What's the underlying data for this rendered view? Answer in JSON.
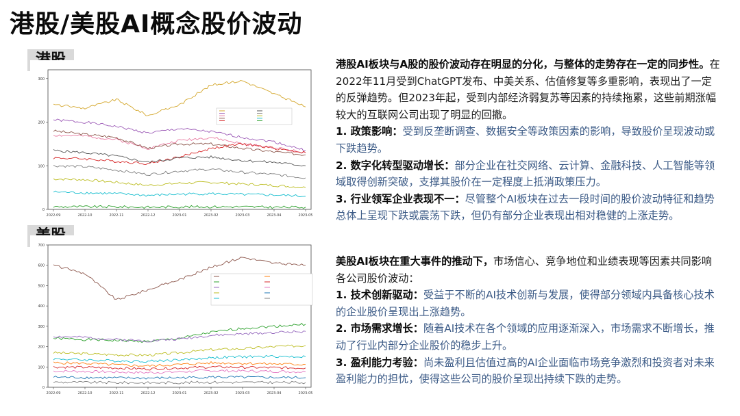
{
  "title": "港股/美股AI概念股价波动",
  "hk": {
    "label": "港股",
    "lead": "港股AI板块与A股的股价波动存在明显的分化，与整体的走势存在一定的同步性。",
    "intro": "在2022年11月受到ChatGPT发布、中美关系、估值修复等多重影响，表现出了一定的反弹趋势。但2023年起，受到内部经济弱复苏等因素的持续拖累，这些前期涨幅较大的互联网公司出现了明显的回撤。",
    "points": [
      {
        "head": "1. 政策影响：",
        "body": "受到反垄断调查、数据安全等政策因素的影响，导致股价呈现波动或下跌趋势。"
      },
      {
        "head": "2. 数字化转型驱动增长：",
        "body": "部分企业在社交网络、云计算、金融科技、人工智能等领域取得创新突破，支撑其股价在一定程度上抵消政策压力。"
      },
      {
        "head": "3. 行业领军企业表现不一：",
        "body": "尽管整个AI板块在过去一段时间的股价波动特征和趋势总体上呈现下跌或震荡下跌，但仍有部分企业表现出相对稳健的上涨走势。"
      }
    ]
  },
  "us": {
    "label": "美股",
    "lead": "美股AI板块在重大事件的推动下，",
    "intro": "市场信心、竞争地位和业绩表现等因素共同影响各公司股价波动：",
    "points": [
      {
        "head": "1. 技术创新驱动：",
        "body": "受益于不断的AI技术创新与发展，使得部分领域内具备核心技术的企业股价呈现出上涨趋势。"
      },
      {
        "head": "2. 市场需求增长：",
        "body": "随着AI技术在各个领域的应用逐渐深入，市场需求不断增长，推动了行业内部分企业股价的稳步上升。"
      },
      {
        "head": "3. 盈利能力考验：",
        "body": "尚未盈利且估值过高的AI企业面临市场竞争激烈和投资者对未来盈利能力的担忧，使得这些公司的股价呈现出持续下跌的走势。"
      }
    ]
  },
  "chart_data": [
    {
      "type": "line",
      "x": [
        "2022-09",
        "2022-10",
        "2022-11",
        "2022-12",
        "2023-01",
        "2023-02",
        "2023-03",
        "2023-04",
        "2023-05"
      ],
      "ylim": [
        0,
        320
      ],
      "yticks": [
        "0",
        "100",
        "200",
        "300"
      ],
      "grid": false,
      "legend_position": "center",
      "series": [
        {
          "color": "#d4a72c",
          "values": [
            240,
            232,
            252,
            215,
            240,
            285,
            295,
            265,
            235
          ]
        },
        {
          "color": "#9b59b6",
          "values": [
            205,
            200,
            190,
            175,
            185,
            178,
            165,
            155,
            135
          ]
        },
        {
          "color": "#e87aa0",
          "values": [
            170,
            168,
            160,
            140,
            158,
            165,
            150,
            142,
            130
          ]
        },
        {
          "color": "#8c564b",
          "values": [
            180,
            172,
            165,
            140,
            150,
            150,
            140,
            132,
            125
          ]
        },
        {
          "color": "#d62728",
          "values": [
            118,
            116,
            110,
            105,
            120,
            140,
            150,
            140,
            130
          ]
        },
        {
          "color": "#555555",
          "values": [
            135,
            130,
            122,
            108,
            118,
            120,
            112,
            108,
            100
          ]
        },
        {
          "color": "#7f7f7f",
          "values": [
            100,
            98,
            90,
            80,
            88,
            92,
            85,
            80,
            72
          ]
        },
        {
          "color": "#bcbd22",
          "values": [
            70,
            68,
            62,
            55,
            60,
            62,
            58,
            55,
            50
          ]
        },
        {
          "color": "#17becf",
          "values": [
            40,
            38,
            36,
            32,
            35,
            36,
            34,
            33,
            30
          ]
        },
        {
          "color": "#2ca02c",
          "values": [
            6,
            6,
            6,
            5,
            6,
            6,
            6,
            5,
            5
          ]
        }
      ]
    },
    {
      "type": "line",
      "x": [
        "2022-09",
        "2022-10",
        "2022-11",
        "2022-12",
        "2023-01",
        "2023-02",
        "2023-03",
        "2023-04",
        "2023-05"
      ],
      "ylim": [
        0,
        700
      ],
      "yticks": [
        "0",
        "100",
        "200",
        "300",
        "400",
        "500",
        "600",
        "700"
      ],
      "grid": false,
      "legend_position": "center-right",
      "series": [
        {
          "color": "#8c564b",
          "values": [
            600,
            560,
            430,
            480,
            530,
            590,
            640,
            610,
            600
          ]
        },
        {
          "color": "#2ca02c",
          "values": [
            240,
            235,
            230,
            225,
            240,
            270,
            290,
            300,
            310
          ]
        },
        {
          "color": "#9467bd",
          "values": [
            250,
            245,
            235,
            228,
            238,
            255,
            262,
            270,
            275
          ]
        },
        {
          "color": "#bcbd22",
          "values": [
            170,
            165,
            160,
            158,
            170,
            185,
            190,
            200,
            205
          ]
        },
        {
          "color": "#17becf",
          "values": [
            140,
            135,
            130,
            128,
            135,
            145,
            150,
            152,
            150
          ]
        },
        {
          "color": "#ff7f0e",
          "values": [
            120,
            118,
            110,
            105,
            112,
            120,
            118,
            115,
            112
          ]
        },
        {
          "color": "#d62728",
          "values": [
            100,
            98,
            95,
            90,
            95,
            100,
            98,
            96,
            95
          ]
        },
        {
          "color": "#e377c2",
          "values": [
            80,
            78,
            75,
            72,
            76,
            82,
            80,
            78,
            76
          ]
        },
        {
          "color": "#1f77b4",
          "values": [
            50,
            48,
            46,
            45,
            47,
            50,
            49,
            48,
            47
          ]
        },
        {
          "color": "#7f7f7f",
          "values": [
            25,
            24,
            23,
            22,
            23,
            25,
            24,
            24,
            23
          ]
        }
      ]
    }
  ]
}
